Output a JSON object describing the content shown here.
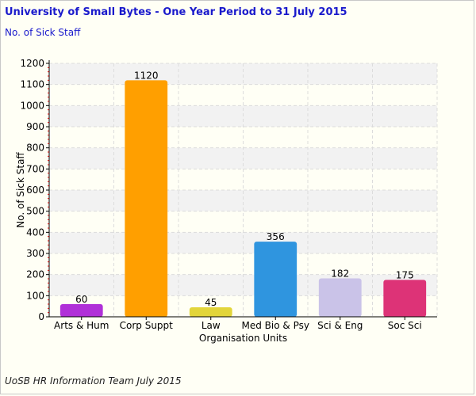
{
  "header": {
    "title": "University of Small Bytes - One Year Period to 31 July 2015",
    "subtitle": "No. of Sick Staff"
  },
  "footer": {
    "text": "UoSB HR Information Team July 2015"
  },
  "chart_data": {
    "type": "bar",
    "categories": [
      "Arts & Hum",
      "Corp Suppt",
      "Law",
      "Med Bio & Psy",
      "Sci & Eng",
      "Soc Sci"
    ],
    "values": [
      60,
      1120,
      45,
      356,
      182,
      175
    ],
    "colors": [
      "#b030d8",
      "#ff9f00",
      "#e2d53a",
      "#2f95df",
      "#cac3e8",
      "#dd3377"
    ],
    "xlabel": "Organisation Units",
    "ylabel": "No. of Sick Staff",
    "ylim": [
      0,
      1200
    ],
    "yticks": [
      0,
      100,
      200,
      300,
      400,
      500,
      600,
      700,
      800,
      900,
      1000,
      1100,
      1200
    ],
    "grid": true,
    "data_labels": [
      "60",
      "1120",
      "45",
      "356",
      "182",
      "175"
    ]
  }
}
